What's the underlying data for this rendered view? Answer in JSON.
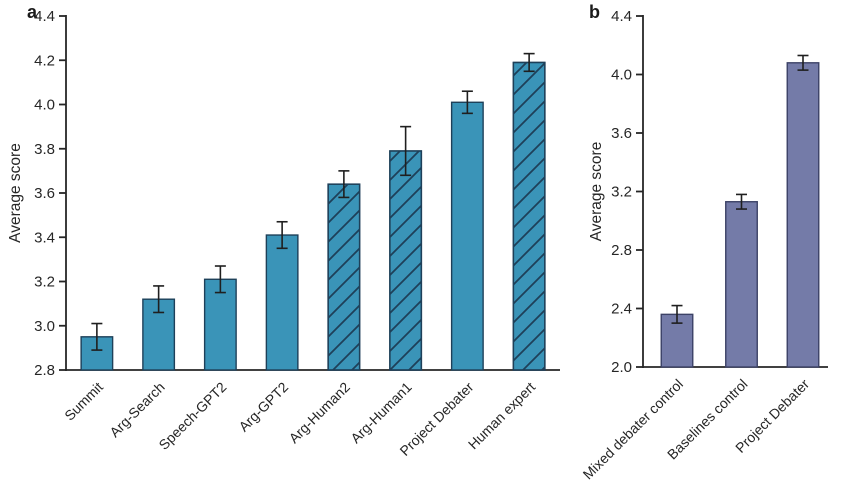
{
  "figure": {
    "background": "#ffffff",
    "axis_color": "#262626",
    "error_color": "#1f1f1f"
  },
  "chart_data": [
    {
      "type": "bar",
      "panel": "a",
      "title": "",
      "xlabel": "",
      "ylabel": "Average score",
      "ylim": [
        2.8,
        4.4
      ],
      "ytick_step": 0.2,
      "ytick_labels": [
        "2.8",
        "3.0",
        "3.2",
        "3.4",
        "3.6",
        "3.8",
        "4.0",
        "4.2",
        "4.4"
      ],
      "grid": false,
      "legend": "none",
      "categories": [
        "Summit",
        "Arg-Search",
        "Speech-GPT2",
        "Arg-GPT2",
        "Arg-Human2",
        "Arg-Human1",
        "Project Debater",
        "Human expert"
      ],
      "values": [
        2.95,
        3.12,
        3.21,
        3.41,
        3.64,
        3.79,
        4.01,
        4.19
      ],
      "errors": [
        0.06,
        0.06,
        0.06,
        0.06,
        0.06,
        0.11,
        0.05,
        0.04
      ],
      "hatched": [
        false,
        false,
        false,
        false,
        true,
        true,
        false,
        true
      ],
      "bar_color": "#3a94b8",
      "bar_edge_color": "#1e4059"
    },
    {
      "type": "bar",
      "panel": "b",
      "title": "",
      "xlabel": "",
      "ylabel": "Average score",
      "ylim": [
        2.0,
        4.4
      ],
      "ytick_step": 0.4,
      "ytick_labels": [
        "2.0",
        "2.4",
        "2.8",
        "3.2",
        "3.6",
        "4.0",
        "4.4"
      ],
      "grid": false,
      "legend": "none",
      "categories": [
        "Mixed debater control",
        "Baselines control",
        "Project Debater"
      ],
      "values": [
        2.36,
        3.13,
        4.08
      ],
      "errors": [
        0.06,
        0.05,
        0.05
      ],
      "hatched": [
        false,
        false,
        false
      ],
      "bar_color": "#747ba8",
      "bar_edge_color": "#3c4266"
    }
  ]
}
